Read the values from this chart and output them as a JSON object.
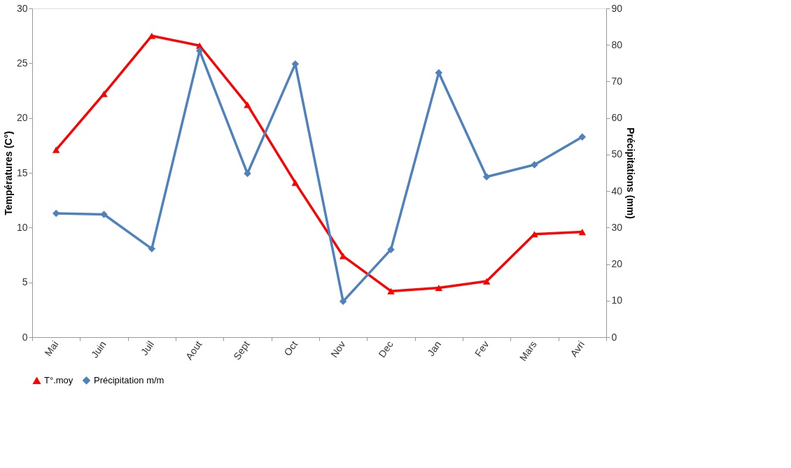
{
  "chart_data": {
    "type": "line",
    "categories": [
      "Mai",
      "Juin",
      "Juil",
      "Aout",
      "Sept",
      "Oct",
      "Nov",
      "Dec",
      "Jan",
      "Fev",
      "Mars",
      "Avri"
    ],
    "ylabel": "Températures (C°)",
    "y2label": "Précipitations (mm)",
    "ylim": [
      0,
      30
    ],
    "yticks": [
      0,
      5,
      10,
      15,
      20,
      25,
      30
    ],
    "y2lim": [
      0,
      90
    ],
    "y2ticks": [
      0,
      10,
      20,
      30,
      40,
      50,
      60,
      70,
      80,
      90
    ],
    "grid": false,
    "legend": "bottom",
    "line_style": "solid",
    "series": [
      {
        "name": "T°.moy",
        "color": "#ff0000",
        "marker": "triangle",
        "values": [
          17.1,
          22.2,
          27.5,
          26.6,
          21.2,
          14.1,
          7.4,
          4.2,
          4.5,
          5.1,
          9.4,
          9.6
        ]
      },
      {
        "name": "Précipitation m/m",
        "color": "#4f81bd",
        "marker": "diamond",
        "axis": "y2",
        "values": [
          33.9,
          33.6,
          24.2,
          78.4,
          44.8,
          74.8,
          9.8,
          24.0,
          72.4,
          43.9,
          47.2,
          54.8
        ]
      }
    ]
  }
}
